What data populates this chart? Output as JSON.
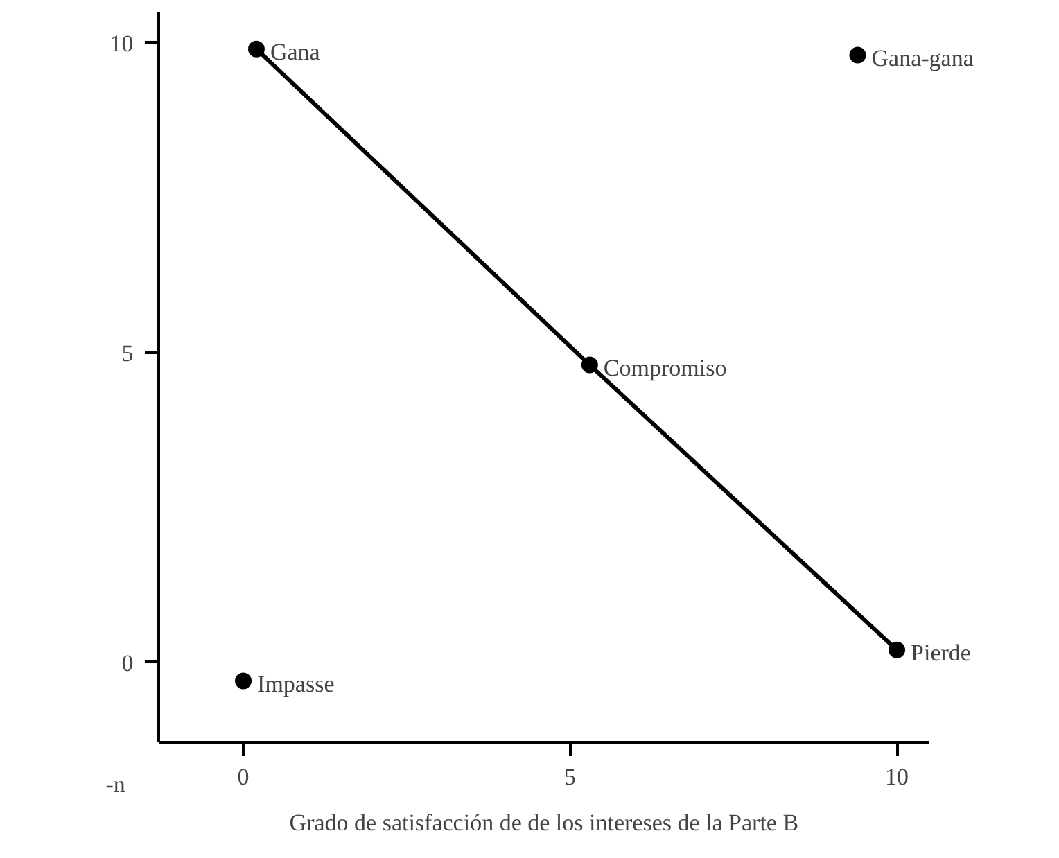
{
  "chart_data": {
    "type": "scatter",
    "xlabel": "Grado de satisfacción de de los intereses de la Parte B",
    "xlim": [
      -1.3,
      10.5
    ],
    "ylim": [
      -1.3,
      10.5
    ],
    "xticks": [
      0,
      5,
      10
    ],
    "yticks": [
      0,
      5,
      10
    ],
    "grid": false,
    "marker": "circle",
    "series": [
      {
        "type": "line",
        "color": "#000000",
        "x": [
          0.2,
          5.3,
          10.0
        ],
        "values": [
          9.9,
          4.8,
          0.2
        ],
        "marker": "none",
        "line_style": "solid"
      },
      {
        "color": "#000000",
        "x": [
          0.2,
          9.4,
          5.3,
          10.0,
          0.0
        ],
        "values": [
          9.9,
          9.8,
          4.8,
          0.2,
          -0.3
        ]
      }
    ],
    "annotations": [
      {
        "text": "Gana",
        "x": 0.2,
        "y": 9.9
      },
      {
        "text": "Gana-gana",
        "x": 9.4,
        "y": 9.8
      },
      {
        "text": "Compromiso",
        "x": 5.3,
        "y": 4.8
      },
      {
        "text": "Pierde",
        "x": 10.0,
        "y": 0.2
      },
      {
        "text": "Impasse",
        "x": 0.0,
        "y": -0.3
      },
      "-n"
    ]
  }
}
